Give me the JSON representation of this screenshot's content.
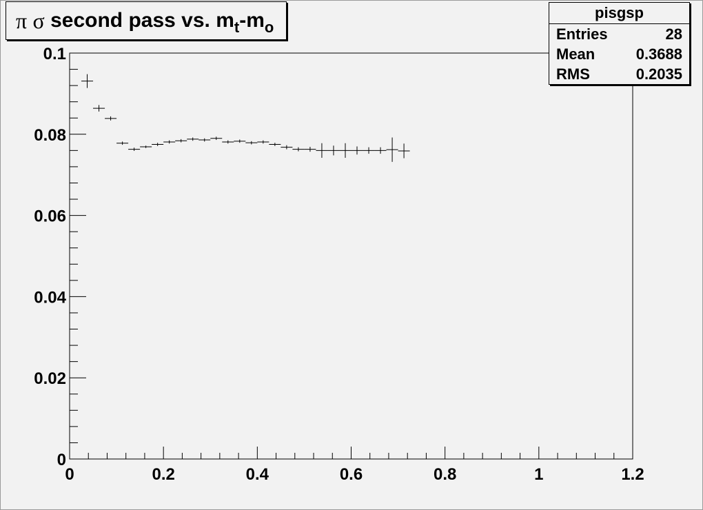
{
  "title": {
    "greek_pi": "π",
    "greek_sigma": "σ",
    "text": "second pass vs. m",
    "sub_t": "t",
    "dash_m": "-m",
    "sub_o": "o"
  },
  "stats": {
    "name": "pisgsp",
    "rows": [
      {
        "label": "Entries",
        "value": "28"
      },
      {
        "label": "Mean",
        "value": "0.3688"
      },
      {
        "label": "RMS",
        "value": "0.2035"
      }
    ]
  },
  "chart_data": {
    "type": "scatter",
    "title": "π σ second pass vs. mt-mo",
    "xlabel": "",
    "ylabel": "",
    "xlim": [
      0,
      1.2
    ],
    "ylim": [
      0,
      0.1
    ],
    "x_tick_labels": [
      "0",
      "0.2",
      "0.4",
      "0.6",
      "0.8",
      "1",
      "1.2"
    ],
    "y_tick_labels": [
      "0",
      "0.02",
      "0.04",
      "0.06",
      "0.08",
      "0.1"
    ],
    "grid": false,
    "bin_width": 0.025,
    "series": [
      {
        "x": [
          0.0375,
          0.0625,
          0.0875,
          0.1125,
          0.1375,
          0.1625,
          0.1875,
          0.2125,
          0.2375,
          0.2625,
          0.2875,
          0.3125,
          0.3375,
          0.3625,
          0.3875,
          0.4125,
          0.4375,
          0.4625,
          0.4875,
          0.5125,
          0.5375,
          0.5625,
          0.5875,
          0.6125,
          0.6375,
          0.6625,
          0.6875,
          0.7125
        ],
        "y": [
          0.0931,
          0.0864,
          0.0839,
          0.0778,
          0.0763,
          0.0769,
          0.0775,
          0.0781,
          0.0784,
          0.0788,
          0.0786,
          0.079,
          0.0781,
          0.0783,
          0.0779,
          0.0781,
          0.0775,
          0.0768,
          0.0763,
          0.0763,
          0.076,
          0.076,
          0.076,
          0.076,
          0.076,
          0.076,
          0.0762,
          0.0759
        ],
        "yerr": [
          0.0017,
          0.0008,
          0.0005,
          0.0004,
          0.0004,
          0.0003,
          0.0004,
          0.0004,
          0.0004,
          0.0004,
          0.0004,
          0.0004,
          0.0004,
          0.0004,
          0.0004,
          0.0004,
          0.0004,
          0.0005,
          0.0005,
          0.0006,
          0.0018,
          0.0012,
          0.0018,
          0.001,
          0.0008,
          0.0008,
          0.003,
          0.0018
        ]
      }
    ]
  }
}
